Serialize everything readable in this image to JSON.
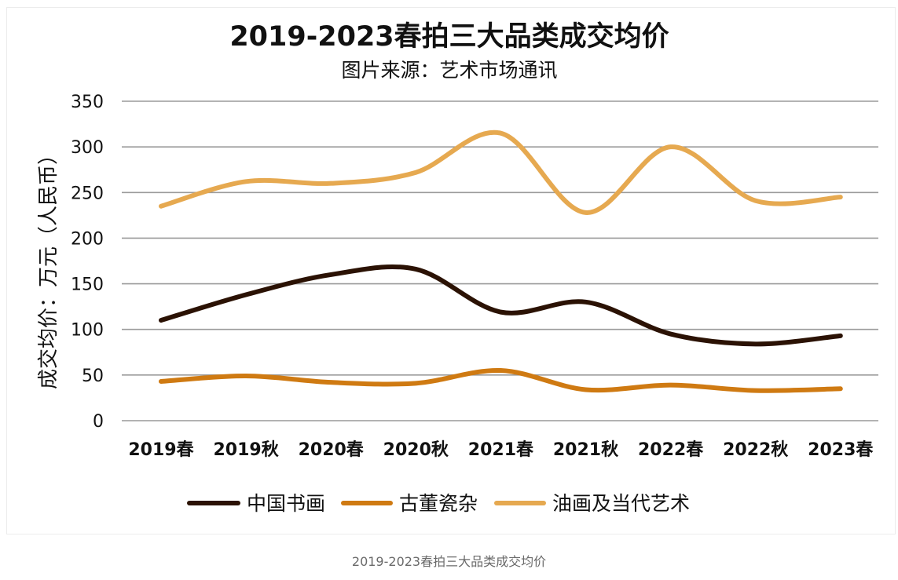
{
  "caption": "2019-2023春拍三大品类成交均价",
  "chart_data": {
    "type": "line",
    "title": "2019-2023春拍三大品类成交均价",
    "subtitle": "图片来源：艺术市场通讯",
    "xlabel": "",
    "ylabel": "成交均价：万元（人民币）",
    "categories": [
      "2019春",
      "2019秋",
      "2020春",
      "2020秋",
      "2021春",
      "2021秋",
      "2022春",
      "2022秋",
      "2023春"
    ],
    "ylim": [
      0,
      350
    ],
    "yticks": [
      0,
      50,
      100,
      150,
      200,
      250,
      300,
      350
    ],
    "grid": true,
    "legend_position": "bottom",
    "smooth": true,
    "series": [
      {
        "name": "中国书画",
        "color": "#2b1204",
        "values": [
          110,
          138,
          160,
          166,
          119,
          130,
          95,
          84,
          93
        ]
      },
      {
        "name": "古董瓷杂",
        "color": "#cf7a12",
        "values": [
          43,
          49,
          42,
          41,
          55,
          34,
          39,
          33,
          35
        ]
      },
      {
        "name": "油画及当代艺术",
        "color": "#e6a950",
        "values": [
          235,
          262,
          260,
          272,
          315,
          228,
          300,
          241,
          245
        ]
      }
    ]
  }
}
